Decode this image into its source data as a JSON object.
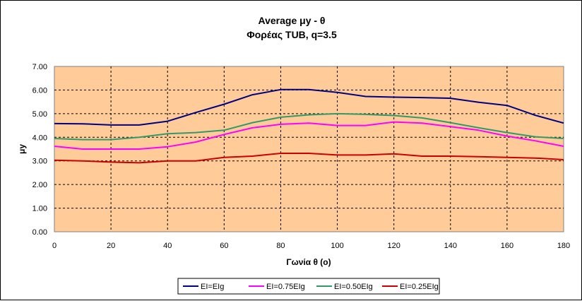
{
  "chart_data": {
    "type": "line",
    "title": "Average μy  - θ",
    "subtitle": "Φορέας TUB, q=3.5",
    "xlabel": "Γωνία θ (o)",
    "ylabel": "μy",
    "xlim": [
      0,
      180
    ],
    "ylim": [
      0,
      7
    ],
    "x_ticks": [
      "0",
      "20",
      "40",
      "60",
      "80",
      "100",
      "120",
      "140",
      "160",
      "180"
    ],
    "y_ticks": [
      "0.00",
      "1.00",
      "2.00",
      "3.00",
      "4.00",
      "5.00",
      "6.00",
      "7.00"
    ],
    "grid": true,
    "plot_background": "#FFCC99",
    "legend_position": "bottom",
    "x": [
      0,
      10,
      20,
      30,
      40,
      50,
      60,
      70,
      80,
      90,
      100,
      110,
      120,
      130,
      140,
      150,
      160,
      170,
      180
    ],
    "series": [
      {
        "name": "EI=EIg",
        "color": "#000080",
        "values": [
          4.58,
          4.57,
          4.52,
          4.52,
          4.68,
          5.05,
          5.4,
          5.8,
          6.02,
          6.02,
          5.9,
          5.73,
          5.7,
          5.68,
          5.65,
          5.48,
          5.35,
          4.93,
          4.6
        ]
      },
      {
        "name": "EI=0.75EIg",
        "color": "#FF00FF",
        "values": [
          3.62,
          3.5,
          3.5,
          3.5,
          3.6,
          3.8,
          4.12,
          4.4,
          4.55,
          4.6,
          4.5,
          4.5,
          4.65,
          4.6,
          4.45,
          4.3,
          4.05,
          3.85,
          3.62
        ]
      },
      {
        "name": "EI=0.50EIg",
        "color": "#339966",
        "values": [
          3.95,
          3.9,
          3.9,
          4.0,
          4.15,
          4.2,
          4.3,
          4.62,
          4.85,
          4.95,
          5.0,
          4.97,
          4.92,
          4.82,
          4.62,
          4.4,
          4.2,
          4.02,
          3.95
        ]
      },
      {
        "name": "EI=0.25EIg",
        "color": "#CC0000",
        "values": [
          3.03,
          3.0,
          2.95,
          2.92,
          3.0,
          3.0,
          3.15,
          3.2,
          3.32,
          3.32,
          3.25,
          3.25,
          3.3,
          3.2,
          3.2,
          3.18,
          3.15,
          3.12,
          3.05
        ]
      }
    ]
  }
}
